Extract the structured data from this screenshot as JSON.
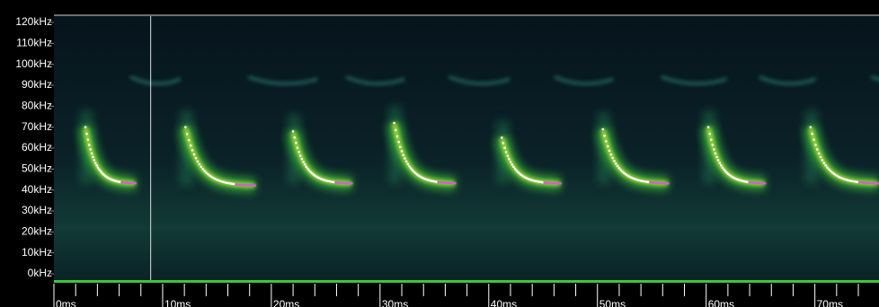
{
  "chart_data": {
    "type": "spectrogram",
    "xlim": [
      0,
      75.9
    ],
    "ylim": [
      -3,
      123
    ],
    "xticks": [
      {
        "value": 0,
        "label": "0ms"
      },
      {
        "value": 10,
        "label": "10ms"
      },
      {
        "value": 20,
        "label": "20ms"
      },
      {
        "value": 30,
        "label": "30ms"
      },
      {
        "value": 40,
        "label": "40ms"
      },
      {
        "value": 50,
        "label": "50ms"
      },
      {
        "value": 60,
        "label": "60ms"
      },
      {
        "value": 70,
        "label": "70ms"
      }
    ],
    "xminorticks": [
      2,
      4,
      6,
      8,
      12,
      14,
      16,
      18,
      22,
      24,
      26,
      28,
      32,
      34,
      36,
      38,
      42,
      44,
      46,
      48,
      52,
      54,
      56,
      58,
      62,
      64,
      66,
      68,
      72,
      74
    ],
    "yticks": [
      {
        "value": 120,
        "label": "120kHz"
      },
      {
        "value": 110,
        "label": "110kHz"
      },
      {
        "value": 100,
        "label": "100kHz"
      },
      {
        "value": 90,
        "label": "90kHz"
      },
      {
        "value": 80,
        "label": "80kHz"
      },
      {
        "value": 70,
        "label": "70kHz"
      },
      {
        "value": 60,
        "label": "60kHz"
      },
      {
        "value": 50,
        "label": "50kHz"
      },
      {
        "value": 40,
        "label": "40kHz"
      },
      {
        "value": 30,
        "label": "30kHz"
      },
      {
        "value": 20,
        "label": "20kHz"
      },
      {
        "value": 10,
        "label": "10kHz"
      },
      {
        "value": 0,
        "label": "0kHz"
      }
    ],
    "cursor": 8.9,
    "calls": [
      {
        "start": 2.9,
        "duration": 4.6,
        "f_start": 70,
        "f_end": 43
      },
      {
        "start": 12.1,
        "duration": 6.4,
        "f_start": 70,
        "f_end": 42
      },
      {
        "start": 22.0,
        "duration": 5.4,
        "f_start": 68,
        "f_end": 43
      },
      {
        "start": 31.3,
        "duration": 5.6,
        "f_start": 72,
        "f_end": 43
      },
      {
        "start": 41.2,
        "duration": 5.4,
        "f_start": 65,
        "f_end": 43
      },
      {
        "start": 50.5,
        "duration": 6.0,
        "f_start": 69,
        "f_end": 43
      },
      {
        "start": 60.2,
        "duration": 5.2,
        "f_start": 70,
        "f_end": 43
      },
      {
        "start": 69.6,
        "duration": 6.2,
        "f_start": 70,
        "f_end": 43
      }
    ],
    "call_color": "#ffffff",
    "tail_color": "#d060d0",
    "glow_color": "#3ec83a"
  }
}
